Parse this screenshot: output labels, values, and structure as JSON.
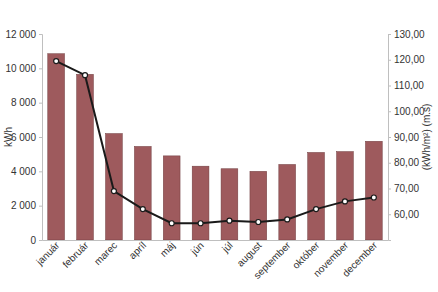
{
  "chart_data": {
    "type": "bar",
    "categories": [
      "január",
      "február",
      "marec",
      "apríl",
      "máj",
      "jún",
      "júl",
      "august",
      "september",
      "október",
      "november",
      "december"
    ],
    "series": [
      {
        "type": "bar",
        "color": "#9e5a5d",
        "values": [
          10850,
          9650,
          6200,
          5450,
          4900,
          4300,
          4150,
          4000,
          4400,
          5100,
          5150,
          5750
        ]
      },
      {
        "type": "line",
        "axis": "y2",
        "color": "#1a1a1a",
        "marker": "circle",
        "line_style": "solid",
        "values": [
          119.5,
          114,
          69,
          62,
          56.5,
          56.5,
          57.5,
          57,
          58,
          62,
          65,
          66.5
        ]
      }
    ],
    "y_label": "kWh",
    "y2_label": "(kWh/m²) (m.s)",
    "ylim": [
      0,
      12000
    ],
    "yticks": [
      0,
      {
        "value": 2000,
        "label": "2 000"
      },
      {
        "value": 4000,
        "label": "4 000"
      },
      {
        "value": 6000,
        "label": "6 000"
      },
      {
        "value": 8000,
        "label": "8 000"
      },
      {
        "value": 10000,
        "label": "10 000"
      },
      {
        "value": 12000,
        "label": "12 000"
      }
    ],
    "y2lim": [
      50,
      130
    ],
    "y2ticks": [
      {
        "value": 60,
        "label": "60,00"
      },
      {
        "value": 70,
        "label": "70,00"
      },
      {
        "value": 80,
        "label": "80,00"
      },
      {
        "value": 90,
        "label": "90,00"
      },
      {
        "value": 100,
        "label": "100,00"
      },
      {
        "value": 110,
        "label": "110,00"
      },
      {
        "value": 120,
        "label": "120,00"
      },
      {
        "value": 130,
        "label": "130,00"
      }
    ],
    "grid": false
  }
}
